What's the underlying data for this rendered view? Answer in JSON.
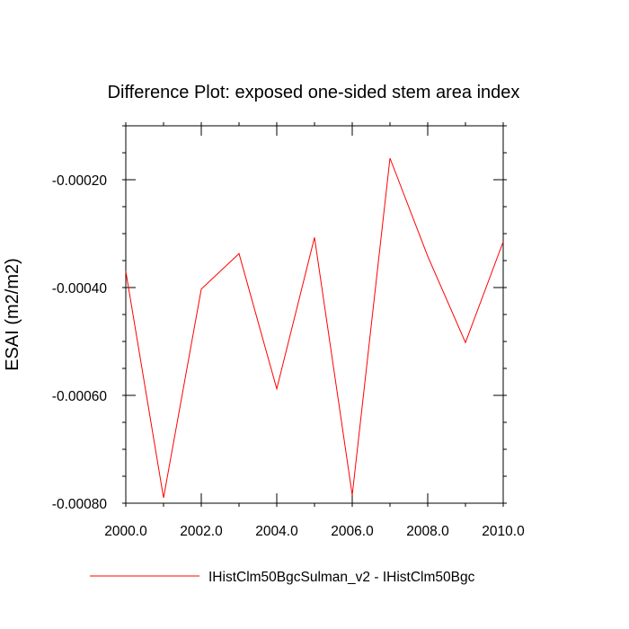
{
  "chart_data": {
    "type": "line",
    "title": "Difference Plot: exposed one-sided stem area index",
    "xlabel": "",
    "ylabel": "ESAI  (m2/m2)",
    "xlim": [
      2000,
      2010
    ],
    "ylim": [
      -0.0008,
      -0.0001
    ],
    "x_ticks": [
      2000,
      2002,
      2004,
      2006,
      2008,
      2010
    ],
    "x_tick_labels": [
      "2000.0",
      "2002.0",
      "2004.0",
      "2006.0",
      "2008.0",
      "2010.0"
    ],
    "y_ticks": [
      -0.0002,
      -0.0004,
      -0.0006,
      -0.0008
    ],
    "y_tick_labels": [
      "-0.00020",
      "-0.00040",
      "-0.00060",
      "-0.00080"
    ],
    "grid": false,
    "legend_position": "bottom",
    "series": [
      {
        "name": "IHistClm50BgcSulman_v2 - IHistClm50Bgc",
        "color": "#ff0000",
        "x": [
          2000,
          2001,
          2002,
          2003,
          2004,
          2005,
          2006,
          2007,
          2008,
          2009,
          2010
        ],
        "y": [
          -0.00037,
          -0.00079,
          -0.000403,
          -0.000337,
          -0.000588,
          -0.000307,
          -0.000785,
          -0.00016,
          -0.000342,
          -0.000502,
          -0.000315
        ]
      }
    ]
  }
}
